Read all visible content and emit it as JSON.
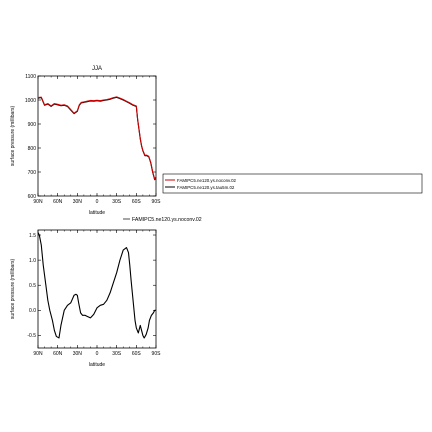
{
  "chart_data": [
    {
      "type": "line",
      "title": "JJA",
      "xlabel": "latitude",
      "ylabel": "surface pressure (millibars)",
      "xlim": [
        90,
        -90
      ],
      "ylim": [
        600,
        1100
      ],
      "x_ticks": [
        90,
        60,
        30,
        0,
        -30,
        -60,
        -90
      ],
      "x_tick_labels": [
        "90N",
        "60N",
        "30N",
        "0",
        "30S",
        "60S",
        "90S"
      ],
      "y_ticks": [
        600,
        700,
        800,
        900,
        1000,
        1100
      ],
      "y_tick_labels": [
        "600",
        "700",
        "800",
        "900",
        "1000",
        "1100"
      ],
      "legend_position": "right, outside plot",
      "series": [
        {
          "name": "FAMIPC5.ne120.ys.noconv.02",
          "color": "#cc0000",
          "x": [
            90,
            85,
            80,
            75,
            70,
            65,
            60,
            55,
            50,
            45,
            40,
            35,
            30,
            27,
            24,
            20,
            15,
            10,
            5,
            0,
            -5,
            -10,
            -15,
            -20,
            -25,
            -30,
            -35,
            -40,
            -45,
            -50,
            -55,
            -60,
            -62,
            -64,
            -66,
            -68,
            -70,
            -73,
            -76,
            -79,
            -82,
            -85,
            -88,
            -90
          ],
          "values": [
            1010,
            1012,
            980,
            985,
            975,
            985,
            982,
            978,
            980,
            975,
            960,
            945,
            955,
            980,
            990,
            992,
            995,
            998,
            997,
            999,
            997,
            1000,
            1002,
            1005,
            1010,
            1013,
            1008,
            1002,
            995,
            988,
            980,
            975,
            920,
            880,
            840,
            810,
            790,
            770,
            770,
            765,
            740,
            700,
            670,
            680
          ]
        },
        {
          "name": "FAMIPC5.ne120.ys.tau5m.02",
          "color": "#000000",
          "x": [
            90,
            85,
            80,
            75,
            70,
            65,
            60,
            55,
            50,
            45,
            40,
            35,
            30,
            27,
            24,
            20,
            15,
            10,
            5,
            0,
            -5,
            -10,
            -15,
            -20,
            -25,
            -30,
            -35,
            -40,
            -45,
            -50,
            -55,
            -60,
            -62,
            -64,
            -66,
            -68,
            -70,
            -73,
            -76,
            -79,
            -82,
            -85,
            -88,
            -90
          ],
          "values": [
            1008,
            1010,
            978,
            983,
            973,
            983,
            980,
            976,
            978,
            973,
            958,
            943,
            953,
            978,
            988,
            990,
            993,
            996,
            995,
            997,
            995,
            998,
            1000,
            1003,
            1008,
            1011,
            1006,
            1000,
            993,
            986,
            978,
            973,
            918,
            878,
            838,
            808,
            788,
            768,
            768,
            763,
            738,
            698,
            668,
            678
          ]
        }
      ]
    },
    {
      "type": "line",
      "title": "",
      "xlabel": "latitude",
      "ylabel": "surface pressure (millibars)",
      "xlim": [
        90,
        -90
      ],
      "ylim": [
        -0.75,
        1.6
      ],
      "x_ticks": [
        90,
        60,
        30,
        0,
        -30,
        -60,
        -90
      ],
      "x_tick_labels": [
        "90N",
        "60N",
        "30N",
        "0",
        "30S",
        "60S",
        "90S"
      ],
      "y_ticks": [
        -0.5,
        0.0,
        0.5,
        1.0,
        1.5
      ],
      "y_tick_labels": [
        "-0.5",
        "0.0",
        "0.5",
        "1.0",
        "1.5"
      ],
      "legend_position": "top-right, outside plot",
      "legend_entries": [
        "FAMIPC5.ne120.ys.noconv.02"
      ],
      "series": [
        {
          "name": "",
          "color": "#000000",
          "x": [
            90,
            88,
            85,
            82,
            78,
            75,
            72,
            68,
            65,
            62,
            58,
            55,
            50,
            45,
            40,
            35,
            32,
            30,
            28,
            25,
            22,
            18,
            15,
            10,
            5,
            0,
            -5,
            -10,
            -15,
            -20,
            -25,
            -30,
            -35,
            -40,
            -45,
            -48,
            -50,
            -52,
            -55,
            -58,
            -60,
            -63,
            -66,
            -68,
            -70,
            -72,
            -75,
            -78,
            -80,
            -83,
            -86,
            -88,
            -90
          ],
          "values": [
            1.55,
            1.5,
            1.3,
            0.9,
            0.5,
            0.2,
            0.0,
            -0.2,
            -0.4,
            -0.52,
            -0.55,
            -0.3,
            0.0,
            0.1,
            0.15,
            0.3,
            0.32,
            0.3,
            0.15,
            -0.05,
            -0.1,
            -0.1,
            -0.12,
            -0.15,
            -0.08,
            0.05,
            0.1,
            0.12,
            0.2,
            0.35,
            0.55,
            0.75,
            1.0,
            1.2,
            1.25,
            1.15,
            0.9,
            0.6,
            0.2,
            -0.2,
            -0.35,
            -0.45,
            -0.3,
            -0.4,
            -0.5,
            -0.55,
            -0.48,
            -0.35,
            -0.2,
            -0.1,
            -0.05,
            0.0,
            0.0
          ]
        }
      ]
    }
  ]
}
